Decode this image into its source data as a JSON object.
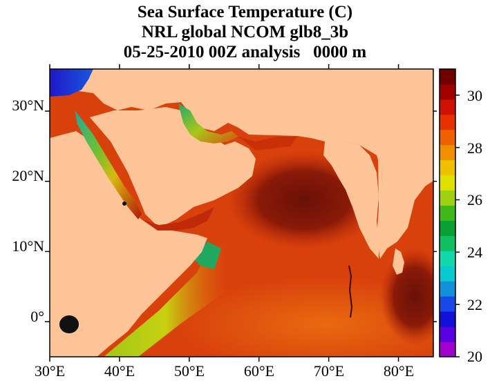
{
  "title": {
    "line1": "Sea Surface Temperature (C)",
    "line2": "NRL global NCOM glb8_3b",
    "line3": "05-25-2010 00Z analysis   0000 m"
  },
  "axes": {
    "lon_labels": [
      "30°E",
      "40°E",
      "50°E",
      "60°E",
      "70°E",
      "80°E"
    ],
    "lon_values": [
      30,
      40,
      50,
      60,
      70,
      80
    ],
    "lat_labels": [
      "30°N",
      "20°N",
      "10°N",
      "0°"
    ],
    "lat_values": [
      30,
      20,
      10,
      0
    ],
    "lon_range": [
      30,
      85
    ],
    "lat_range": [
      -5,
      36
    ]
  },
  "colorbar": {
    "ticks": [
      "30",
      "28",
      "26",
      "24",
      "22",
      "20"
    ],
    "tick_values": [
      30,
      28,
      26,
      24,
      22,
      20
    ],
    "range": [
      20,
      31
    ],
    "colors": [
      "#a000d0",
      "#5a00e0",
      "#1010d8",
      "#1848e8",
      "#1090d8",
      "#08c8d0",
      "#10d8a8",
      "#10c060",
      "#08a030",
      "#40b818",
      "#a0d010",
      "#e0e000",
      "#f0c000",
      "#f09000",
      "#f06000",
      "#e83000",
      "#d01000",
      "#a00000",
      "#700000"
    ]
  },
  "colors": {
    "land": "#fdc597",
    "warm_ocean": "#d83a0a",
    "hot_ocean": "#7a1208",
    "mid_ocean": "#e86010",
    "cool_coast": "#a8c818",
    "coastal_green": "#20a858"
  }
}
